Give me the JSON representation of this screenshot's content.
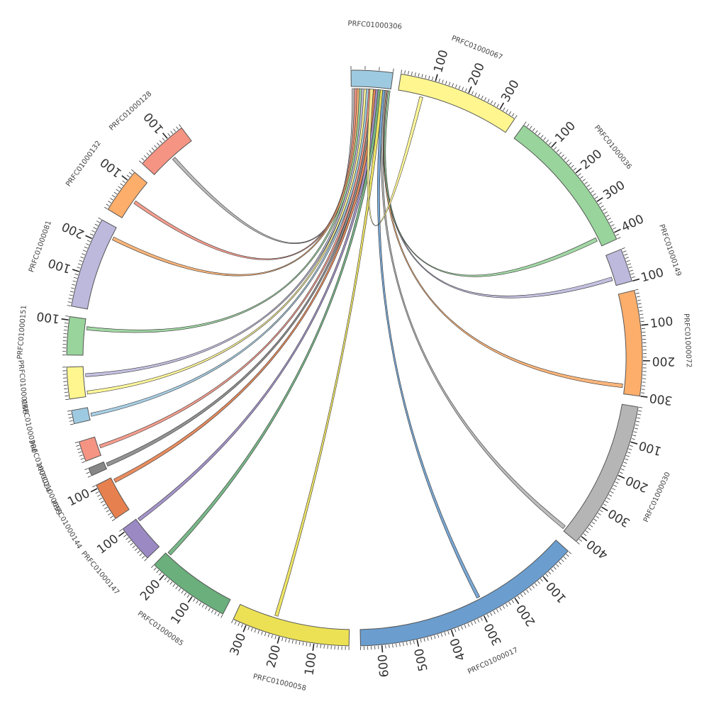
{
  "chart_data": {
    "type": "chord",
    "tick_step_minor": 10,
    "tick_step_major": 100,
    "segments": [
      {
        "name": "PRFC01000306",
        "length": 30,
        "color": "#9ecae1",
        "start_deg": 359.3,
        "end_deg": 7.7
      },
      {
        "name": "PRFC01000067",
        "length": 350,
        "color": "#fff68f",
        "start_deg": 9.3,
        "end_deg": 33.8
      },
      {
        "name": "PRFC01000036",
        "length": 420,
        "color": "#98d49b",
        "start_deg": 36.0,
        "end_deg": 65.6
      },
      {
        "name": "PRFC01000149",
        "length": 100,
        "color": "#bcb9dd",
        "start_deg": 67.8,
        "end_deg": 74.5
      },
      {
        "name": "PRFC01000072",
        "length": 300,
        "color": "#fdae6b",
        "start_deg": 76.4,
        "end_deg": 97.6
      },
      {
        "name": "PRFC01000030",
        "length": 420,
        "color": "#b5b5b5",
        "start_deg": 99.8,
        "end_deg": 129.6
      },
      {
        "name": "PRFC01000017",
        "length": 660,
        "color": "#6b9ecf",
        "start_deg": 132.1,
        "end_deg": 178.8
      },
      {
        "name": "PRFC01000058",
        "length": 340,
        "color": "#ece154",
        "start_deg": 181.1,
        "end_deg": 204.9
      },
      {
        "name": "PRFC01000085",
        "length": 240,
        "color": "#6aaf7c",
        "start_deg": 207.2,
        "end_deg": 224.1
      },
      {
        "name": "PRFC01000147",
        "length": 110,
        "color": "#9b89c4",
        "start_deg": 226.0,
        "end_deg": 233.6
      },
      {
        "name": "PRFC01000144",
        "length": 110,
        "color": "#e6814f",
        "start_deg": 236.1,
        "end_deg": 243.8
      },
      {
        "name": "PRFC01000059",
        "length": 20,
        "color": "#878787",
        "start_deg": 245.9,
        "end_deg": 247.5
      },
      {
        "name": "PRFC01000024",
        "length": 60,
        "color": "#f59483",
        "start_deg": 249.0,
        "end_deg": 253.1
      },
      {
        "name": "PRFC01000300",
        "length": 40,
        "color": "#9ecae1",
        "start_deg": 256.8,
        "end_deg": 259.5
      },
      {
        "name": "PRFC01000166",
        "length": 90,
        "color": "#fff68f",
        "start_deg": 261.8,
        "end_deg": 268.2
      },
      {
        "name": "PRFC01000151",
        "length": 110,
        "color": "#98d49b",
        "start_deg": 270.6,
        "end_deg": 278.3
      },
      {
        "name": "PRFC01000081",
        "length": 260,
        "color": "#bcb9dd",
        "start_deg": 280.4,
        "end_deg": 298.7
      },
      {
        "name": "PRFC01000132",
        "length": 130,
        "color": "#fdae6b",
        "start_deg": 301.1,
        "end_deg": 310.2
      },
      {
        "name": "PRFC01000128",
        "length": 150,
        "color": "#f59483",
        "start_deg": 312.5,
        "end_deg": 323.1
      }
    ],
    "links": [
      {
        "source": "PRFC01000306",
        "target": "PRFC01000128",
        "color": "#b5b5b5",
        "src_deg": [
          359.5,
          360.3
        ],
        "tgt_deg": [
          317.5,
          318.2
        ]
      },
      {
        "source": "PRFC01000306",
        "target": "PRFC01000132",
        "color": "#f59483",
        "src_deg": [
          0.0,
          0.7
        ],
        "tgt_deg": [
          305.0,
          305.7
        ]
      },
      {
        "source": "PRFC01000306",
        "target": "PRFC01000081",
        "color": "#fdae6b",
        "src_deg": [
          0.5,
          1.2
        ],
        "tgt_deg": [
          296.0,
          296.7
        ]
      },
      {
        "source": "PRFC01000306",
        "target": "PRFC01000151",
        "color": "#98d49b",
        "src_deg": [
          1.0,
          1.7
        ],
        "tgt_deg": [
          276.0,
          276.7
        ]
      },
      {
        "source": "PRFC01000306",
        "target": "PRFC01000166",
        "color": "#bcb9dd",
        "src_deg": [
          1.5,
          2.2
        ],
        "tgt_deg": [
          266.0,
          266.7
        ]
      },
      {
        "source": "PRFC01000306",
        "target": "PRFC01000166",
        "color": "#fff68f",
        "src_deg": [
          2.0,
          2.7
        ],
        "tgt_deg": [
          262.3,
          263.0
        ]
      },
      {
        "source": "PRFC01000306",
        "target": "PRFC01000300",
        "color": "#9ecae1",
        "src_deg": [
          2.5,
          3.2
        ],
        "tgt_deg": [
          257.5,
          258.2
        ]
      },
      {
        "source": "PRFC01000306",
        "target": "PRFC01000024",
        "color": "#f59483",
        "src_deg": [
          3.0,
          3.7
        ],
        "tgt_deg": [
          250.5,
          251.2
        ]
      },
      {
        "source": "PRFC01000306",
        "target": "PRFC01000059",
        "color": "#878787",
        "src_deg": [
          3.5,
          4.2
        ],
        "tgt_deg": [
          246.3,
          247.1
        ]
      },
      {
        "source": "PRFC01000306",
        "target": "PRFC01000144",
        "color": "#e6814f",
        "src_deg": [
          4.0,
          4.7
        ],
        "tgt_deg": [
          242.5,
          243.3
        ]
      },
      {
        "source": "PRFC01000306",
        "target": "PRFC01000147",
        "color": "#9b89c4",
        "src_deg": [
          4.5,
          5.2
        ],
        "tgt_deg": [
          232.8,
          233.5
        ]
      },
      {
        "source": "PRFC01000306",
        "target": "PRFC01000085",
        "color": "#6aaf7c",
        "src_deg": [
          5.0,
          5.7
        ],
        "tgt_deg": [
          223.0,
          223.8
        ]
      },
      {
        "source": "PRFC01000306",
        "target": "PRFC01000058",
        "color": "#ece154",
        "src_deg": [
          5.5,
          6.2
        ],
        "tgt_deg": [
          196.5,
          197.2
        ]
      },
      {
        "source": "PRFC01000306",
        "target": "PRFC01000017",
        "color": "#6b9ecf",
        "src_deg": [
          6.0,
          6.7
        ],
        "tgt_deg": [
          152.3,
          153.0
        ]
      },
      {
        "source": "PRFC01000306",
        "target": "PRFC01000030",
        "color": "#b5b5b5",
        "src_deg": [
          6.5,
          7.0
        ],
        "tgt_deg": [
          128.5,
          129.3
        ]
      },
      {
        "source": "PRFC01000306",
        "target": "PRFC01000072",
        "color": "#fdae6b",
        "src_deg": [
          6.8,
          7.3
        ],
        "tgt_deg": [
          95.5,
          96.3
        ]
      },
      {
        "source": "PRFC01000306",
        "target": "PRFC01000149",
        "color": "#bcb9dd",
        "src_deg": [
          7.0,
          7.5
        ],
        "tgt_deg": [
          72.5,
          73.3
        ]
      },
      {
        "source": "PRFC01000306",
        "target": "PRFC01000036",
        "color": "#98d49b",
        "src_deg": [
          7.2,
          7.6
        ],
        "tgt_deg": [
          63.5,
          64.3
        ]
      },
      {
        "source": "PRFC01000306",
        "target": "PRFC01000067",
        "color": "#fff68f",
        "src_deg": [
          3.3,
          4.0
        ],
        "tgt_deg": [
          14.0,
          14.7
        ]
      }
    ]
  }
}
